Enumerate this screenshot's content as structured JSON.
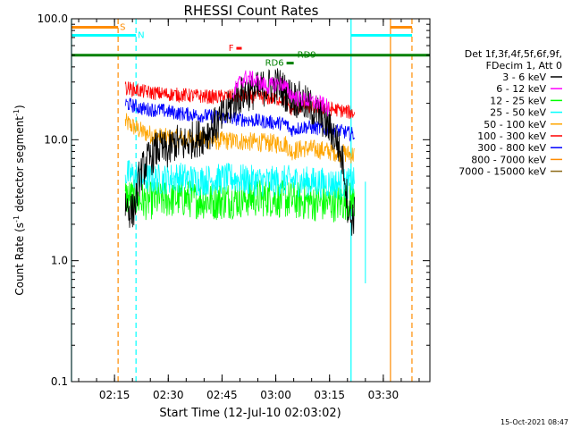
{
  "chart_data": {
    "type": "line",
    "title": "RHESSI Count Rates",
    "xlabel": "Start Time (12-Jul-10 02:03:02)",
    "ylabel_main": "Count Rate (s",
    "ylabel_sup1": "-1",
    "ylabel_mid": " detector segment",
    "ylabel_sup2": "-1",
    "ylabel_end": ")",
    "yscale": "log",
    "ylim": [
      0.1,
      100
    ],
    "xlim_minutes": [
      0,
      100
    ],
    "x_ticks": [
      {
        "label": "02:15",
        "minute": 12
      },
      {
        "label": "02:30",
        "minute": 27
      },
      {
        "label": "02:45",
        "minute": 42
      },
      {
        "label": "03:00",
        "minute": 57
      },
      {
        "label": "03:15",
        "minute": 72
      },
      {
        "label": "03:30",
        "minute": 87
      }
    ],
    "y_ticks": [
      {
        "label": "100.0",
        "value": 100
      },
      {
        "label": "10.0",
        "value": 10
      },
      {
        "label": "1.0",
        "value": 1
      },
      {
        "label": "0.1",
        "value": 0.1
      }
    ],
    "legend_header": [
      "Det 1f,3f,4f,5f,6f,9f,",
      "FDecim 1, Att 0"
    ],
    "series": [
      {
        "name": "3 - 6 keV",
        "color": "#000000",
        "noise": 0.16,
        "points": [
          [
            15,
            3.0
          ],
          [
            16,
            2.7
          ],
          [
            17,
            2.5
          ],
          [
            18,
            3.2
          ],
          [
            19,
            5.0
          ],
          [
            21,
            6.6
          ],
          [
            22,
            7.0
          ],
          [
            24,
            8.5
          ],
          [
            27,
            8.0
          ],
          [
            29,
            9.5
          ],
          [
            31,
            9.0
          ],
          [
            33,
            9.8
          ],
          [
            36,
            10.5
          ],
          [
            38,
            11.5
          ],
          [
            40,
            13.0
          ],
          [
            42,
            15.0
          ],
          [
            44,
            18.0
          ],
          [
            46,
            22.0
          ],
          [
            48,
            24.0
          ],
          [
            50,
            25.0
          ],
          [
            52,
            25.5
          ],
          [
            54,
            27.0
          ],
          [
            56,
            28.0
          ],
          [
            58,
            28.0
          ],
          [
            60,
            24.0
          ],
          [
            62,
            22.0
          ],
          [
            64,
            21.0
          ],
          [
            66,
            19.0
          ],
          [
            68,
            17.5
          ],
          [
            70,
            15.0
          ],
          [
            72,
            12.5
          ],
          [
            74,
            10.0
          ],
          [
            76,
            6.0
          ],
          [
            77,
            3.0
          ],
          [
            78,
            2.2
          ],
          [
            79,
            2.4
          ]
        ]
      },
      {
        "name": "6 - 12 keV",
        "color": "#ff00ff",
        "noise": 0.07,
        "points": [
          [
            45,
            24.0
          ],
          [
            47,
            30.0
          ],
          [
            49,
            33.0
          ],
          [
            51,
            31.0
          ],
          [
            53,
            29.0
          ],
          [
            55,
            27.5
          ],
          [
            57,
            29.0
          ],
          [
            59,
            29.0
          ],
          [
            61,
            24.0
          ],
          [
            63,
            22.0
          ],
          [
            65,
            21.5
          ],
          [
            67,
            20.5
          ],
          [
            69,
            20.0
          ],
          [
            71,
            19.0
          ],
          [
            72,
            17.0
          ]
        ]
      },
      {
        "name": "12 - 25 keV",
        "color": "#00ff00",
        "noise": 0.16,
        "points": [
          [
            15,
            3.4
          ],
          [
            20,
            3.1
          ],
          [
            25,
            3.2
          ],
          [
            30,
            3.3
          ],
          [
            35,
            3.2
          ],
          [
            40,
            3.1
          ],
          [
            45,
            3.2
          ],
          [
            50,
            3.3
          ],
          [
            55,
            3.3
          ],
          [
            60,
            3.2
          ],
          [
            65,
            3.1
          ],
          [
            70,
            3.0
          ],
          [
            75,
            3.0
          ],
          [
            79,
            3.2
          ]
        ]
      },
      {
        "name": "25 - 50 keV",
        "color": "#00ffff",
        "noise": 0.13,
        "points": [
          [
            15,
            5.2
          ],
          [
            20,
            4.8
          ],
          [
            25,
            4.7
          ],
          [
            30,
            4.9
          ],
          [
            35,
            4.6
          ],
          [
            40,
            4.7
          ],
          [
            45,
            4.8
          ],
          [
            50,
            4.6
          ],
          [
            55,
            4.5
          ],
          [
            60,
            4.6
          ],
          [
            65,
            4.5
          ],
          [
            70,
            4.4
          ],
          [
            75,
            4.3
          ],
          [
            79,
            4.4
          ]
        ]
      },
      {
        "name": "50 - 100 keV",
        "color": "#ffa500",
        "noise": 0.08,
        "points": [
          [
            15,
            14.0
          ],
          [
            20,
            11.5
          ],
          [
            25,
            10.5
          ],
          [
            30,
            10.2
          ],
          [
            35,
            10.0
          ],
          [
            40,
            9.8
          ],
          [
            45,
            9.8
          ],
          [
            50,
            9.6
          ],
          [
            55,
            9.4
          ],
          [
            60,
            9.2
          ],
          [
            61,
            8.0
          ],
          [
            65,
            8.5
          ],
          [
            70,
            8.2
          ],
          [
            75,
            7.8
          ],
          [
            79,
            7.5
          ]
        ]
      },
      {
        "name": "100 - 300 keV",
        "color": "#ff0000",
        "noise": 0.06,
        "points": [
          [
            15,
            27.0
          ],
          [
            20,
            25.0
          ],
          [
            25,
            24.0
          ],
          [
            30,
            23.5
          ],
          [
            35,
            23.0
          ],
          [
            40,
            22.5
          ],
          [
            45,
            23.0
          ],
          [
            50,
            23.0
          ],
          [
            55,
            22.0
          ],
          [
            60,
            21.5
          ],
          [
            61,
            18.0
          ],
          [
            65,
            19.0
          ],
          [
            70,
            18.5
          ],
          [
            75,
            17.5
          ],
          [
            79,
            16.5
          ]
        ]
      },
      {
        "name": "300 - 800 keV",
        "color": "#0000ff",
        "noise": 0.06,
        "points": [
          [
            15,
            20.0
          ],
          [
            20,
            18.0
          ],
          [
            25,
            17.5
          ],
          [
            30,
            16.5
          ],
          [
            35,
            16.0
          ],
          [
            40,
            15.5
          ],
          [
            45,
            15.0
          ],
          [
            50,
            14.5
          ],
          [
            55,
            14.0
          ],
          [
            60,
            13.5
          ],
          [
            61,
            12.0
          ],
          [
            65,
            12.8
          ],
          [
            70,
            12.3
          ],
          [
            75,
            11.8
          ],
          [
            79,
            11.0
          ]
        ]
      },
      {
        "name": "800 - 7000 keV",
        "color": "#ff8c00",
        "noise": 0.0,
        "points": []
      },
      {
        "name": "7000 - 15000 keV",
        "color": "#8b6914",
        "noise": 0.0,
        "points": []
      }
    ],
    "spike": {
      "color": "#00ffff",
      "minute": 82,
      "low": 0.65,
      "high": 4.5
    },
    "vertical_lines": [
      {
        "minute": 0,
        "style": "solid",
        "color": "#00ffff"
      },
      {
        "minute": 13,
        "style": "dashed",
        "color": "#ff8c00"
      },
      {
        "minute": 18,
        "style": "dashed",
        "color": "#00ffff"
      },
      {
        "minute": 78,
        "style": "solid",
        "color": "#00ffff"
      },
      {
        "minute": 89,
        "style": "solid",
        "color": "#ff8c00"
      },
      {
        "minute": 95,
        "style": "dashed",
        "color": "#ff8c00"
      }
    ],
    "flag_bars": [
      {
        "label": "S",
        "color": "#ff8c00",
        "value": 85,
        "segments": [
          [
            0,
            13
          ],
          [
            89,
            95
          ]
        ]
      },
      {
        "label": "N",
        "color": "#00ffff",
        "value": 73,
        "segments": [
          [
            0,
            18
          ],
          [
            78,
            95
          ]
        ]
      },
      {
        "label": "F",
        "color": "#ff0000",
        "value": 57,
        "segments": [
          [
            46,
            47.5
          ]
        ]
      },
      {
        "label": "RD9",
        "color": "#008000",
        "value": 50,
        "segments": [
          [
            0,
            100
          ]
        ]
      },
      {
        "label": "RD6",
        "color": "#008000",
        "value": 43,
        "segments": [
          [
            60,
            62
          ]
        ]
      }
    ],
    "timestamp": "15-Oct-2021 08:47"
  }
}
